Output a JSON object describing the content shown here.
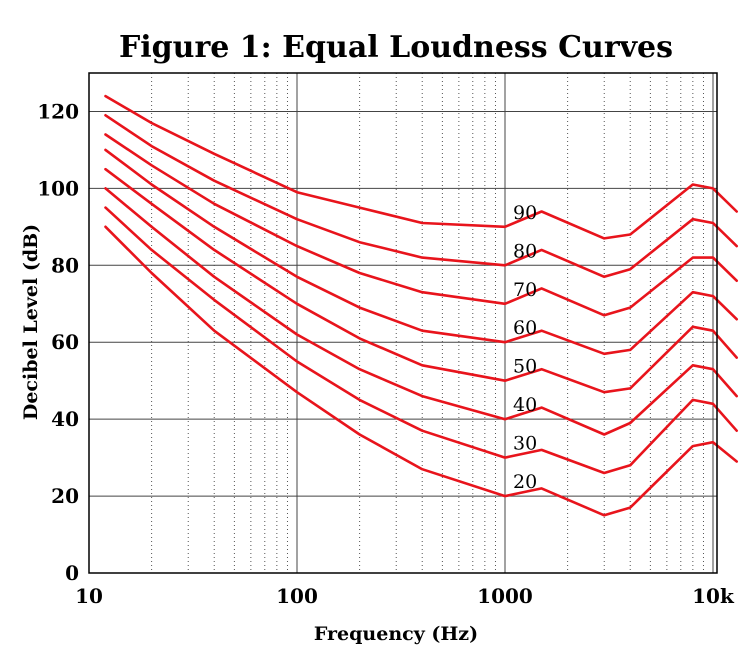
{
  "chart_data": {
    "type": "line",
    "title": "Figure 1: Equal Loudness Curves",
    "xlabel": "Frequency (Hz)",
    "ylabel": "Decibel Level (dB)",
    "x_scale": "log",
    "xlim": [
      10,
      15000
    ],
    "ylim": [
      0,
      130
    ],
    "x_ticks": [
      {
        "value": 10,
        "label": "10"
      },
      {
        "value": 100,
        "label": "100"
      },
      {
        "value": 1000,
        "label": "1000"
      },
      {
        "value": 10000,
        "label": "10k"
      }
    ],
    "y_ticks": [
      {
        "value": 0,
        "label": "0"
      },
      {
        "value": 20,
        "label": "20"
      },
      {
        "value": 40,
        "label": "40"
      },
      {
        "value": 60,
        "label": "60"
      },
      {
        "value": 80,
        "label": "80"
      },
      {
        "value": 100,
        "label": "100"
      },
      {
        "value": 120,
        "label": "120"
      }
    ],
    "grid": true,
    "minor_grid": "dotted vertical at 2–9 × decade",
    "line_color": "#e8141c",
    "x": [
      12,
      20,
      40,
      100,
      200,
      400,
      1000,
      1500,
      3000,
      4000,
      8000,
      10000,
      13000
    ],
    "series": [
      {
        "label": "90",
        "values": [
          124,
          117,
          109,
          99,
          95,
          91,
          90,
          94,
          87,
          88,
          101,
          100,
          94
        ]
      },
      {
        "label": "80",
        "values": [
          119,
          111,
          102,
          92,
          86,
          82,
          80,
          84,
          77,
          79,
          92,
          91,
          85
        ]
      },
      {
        "label": "70",
        "values": [
          114,
          106,
          96,
          85,
          78,
          73,
          70,
          74,
          67,
          69,
          82,
          82,
          76
        ]
      },
      {
        "label": "60",
        "values": [
          110,
          101,
          90,
          77,
          69,
          63,
          60,
          63,
          57,
          58,
          73,
          72,
          66
        ]
      },
      {
        "label": "50",
        "values": [
          105,
          96,
          84,
          70,
          61,
          54,
          50,
          53,
          47,
          48,
          64,
          63,
          56
        ]
      },
      {
        "label": "40",
        "values": [
          100,
          90,
          77,
          62,
          53,
          46,
          40,
          43,
          36,
          39,
          54,
          53,
          46
        ]
      },
      {
        "label": "30",
        "values": [
          95,
          84,
          71,
          55,
          45,
          37,
          30,
          32,
          26,
          28,
          45,
          44,
          37
        ]
      },
      {
        "label": "20",
        "values": [
          90,
          78,
          63,
          47,
          36,
          27,
          20,
          22,
          15,
          17,
          33,
          34,
          29
        ]
      }
    ]
  }
}
